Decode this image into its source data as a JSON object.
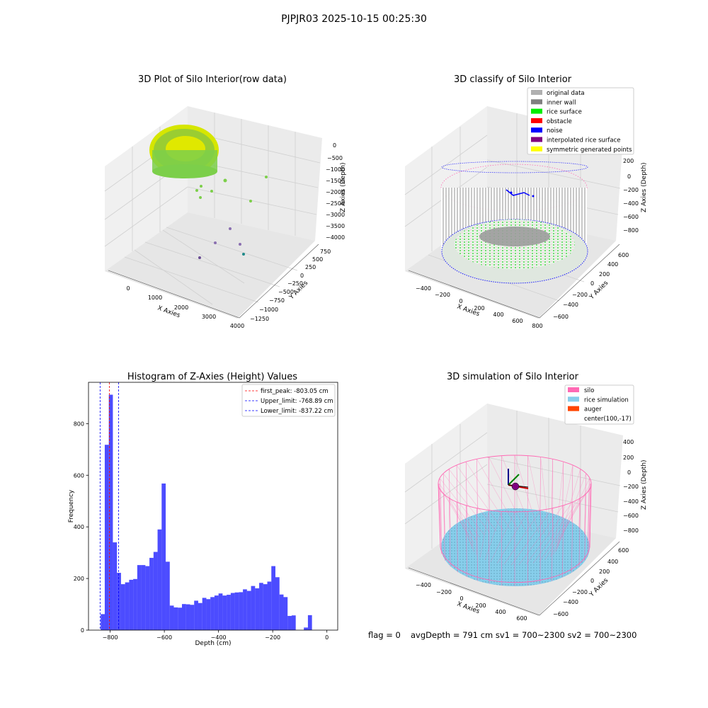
{
  "suptitle": "PJPJR03 2025-10-15 00:25:30",
  "footer": {
    "flag": "flag = 0",
    "avg": "avgDepth = 791 cm  sv1 = 700~2300  sv2 = 700~2300"
  },
  "chart_data": [
    {
      "type": "scatter",
      "title": "3D Plot of Silo Interior(row data)",
      "xlabel": "X Axies",
      "ylabel": "Y Axies",
      "zlabel": "Z Axies (Depth)",
      "x_ticks": [
        "0",
        "1000",
        "2000",
        "3000",
        "4000"
      ],
      "y_ticks": [
        "750",
        "500",
        "250",
        "0",
        "−250",
        "−500",
        "−750",
        "−1000",
        "−1250"
      ],
      "z_ticks": [
        "0",
        "−500",
        "−1000",
        "−1500",
        "−2000",
        "−2500",
        "−3000",
        "−3500",
        "−4000"
      ]
    },
    {
      "type": "scatter",
      "title": "3D classify of Silo Interior",
      "xlabel": "X Axies",
      "ylabel": "Y Axies",
      "zlabel": "Z Axies (Depth)",
      "x_ticks": [
        "−400",
        "−200",
        "0",
        "200",
        "400",
        "600",
        "800"
      ],
      "y_ticks": [
        "600",
        "400",
        "200",
        "0",
        "−200",
        "−400",
        "−600"
      ],
      "z_ticks": [
        "200",
        "0",
        "−200",
        "−400",
        "−600",
        "−800"
      ],
      "legend": [
        {
          "name": "original data",
          "color": "#b0b0b0"
        },
        {
          "name": "inner wall",
          "color": "#808080"
        },
        {
          "name": "rice surface",
          "color": "#00ee00"
        },
        {
          "name": "obstacle",
          "color": "#ff0000"
        },
        {
          "name": "noise",
          "color": "#0000ff"
        },
        {
          "name": "interpolated rice surface",
          "color": "#800080"
        },
        {
          "name": "symmetric generated points",
          "color": "#ffff00"
        }
      ]
    },
    {
      "type": "bar",
      "title": "Histogram of Z-Axies (Height) Values",
      "xlabel": "Depth (cm)",
      "ylabel": "Frequency",
      "xlim": [
        -880,
        40
      ],
      "ylim": [
        0,
        960
      ],
      "x_ticks": [
        -800,
        -600,
        -400,
        -200,
        0
      ],
      "x_tick_labels": [
        "−800",
        "−600",
        "−400",
        "−200",
        "0"
      ],
      "y_ticks": [
        0,
        200,
        400,
        600,
        800
      ],
      "bin_edges": [
        -850,
        -835,
        -820,
        -805,
        -790,
        -775,
        -760,
        -745,
        -730,
        -715,
        -700,
        -685,
        -670,
        -655,
        -640,
        -625,
        -610,
        -595,
        -580,
        -565,
        -550,
        -535,
        -520,
        -505,
        -490,
        -475,
        -460,
        -445,
        -430,
        -415,
        -400,
        -385,
        -370,
        -355,
        -340,
        -325,
        -310,
        -295,
        -280,
        -265,
        -250,
        -235,
        -220,
        -205,
        -190,
        -175,
        -160,
        -145,
        -130,
        -115,
        -100,
        -85,
        -70,
        -55,
        -40,
        -25,
        -10,
        5
      ],
      "values": [
        0,
        62,
        718,
        912,
        340,
        222,
        178,
        185,
        195,
        198,
        252,
        252,
        248,
        280,
        303,
        390,
        568,
        265,
        95,
        88,
        87,
        101,
        100,
        98,
        114,
        105,
        125,
        120,
        128,
        134,
        142,
        134,
        137,
        144,
        146,
        147,
        158,
        152,
        171,
        162,
        183,
        178,
        188,
        248,
        205,
        138,
        128,
        55,
        57,
        0,
        0,
        10,
        58,
        0,
        0,
        0,
        0
      ],
      "bar_color": "#0000ff",
      "bar_alpha": 0.7,
      "vlines": [
        {
          "label": "first_peak: -803.05 cm",
          "x": -803.05,
          "color": "#ff0000"
        },
        {
          "label": "Upper_limit: -768.89 cm",
          "x": -768.89,
          "color": "#0000ff"
        },
        {
          "label": "Lower_limit: -837.22 cm",
          "x": -837.22,
          "color": "#0000ff"
        }
      ],
      "legend_position": "top-right"
    },
    {
      "type": "scatter",
      "title": "3D simulation of Silo Interior",
      "xlabel": "X Axies",
      "ylabel": "Y Axies",
      "zlabel": "Z Axies (Depth)",
      "x_ticks": [
        "−400",
        "−200",
        "0",
        "200",
        "400",
        "600"
      ],
      "y_ticks": [
        "600",
        "400",
        "200",
        "0",
        "−200",
        "−400",
        "−600"
      ],
      "z_ticks": [
        "400",
        "200",
        "0",
        "−200",
        "−400",
        "−600",
        "−800"
      ],
      "legend": [
        {
          "name": "silo",
          "color": "#ff69b4"
        },
        {
          "name": "rice simulation",
          "color": "#87ceeb"
        },
        {
          "name": "auger",
          "color": "#ff4500"
        },
        {
          "name": "center(100,-17)",
          "color": "none"
        }
      ]
    }
  ]
}
